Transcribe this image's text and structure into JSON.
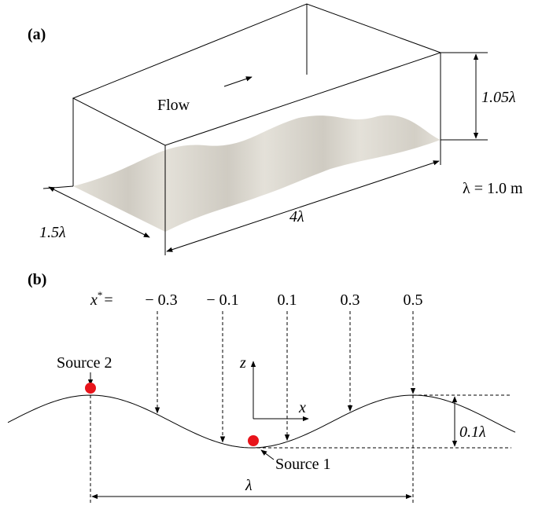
{
  "panel_a": {
    "label": "(a)",
    "flow": "Flow",
    "height": "1.05λ",
    "width": "1.5λ",
    "length": "4λ",
    "wavelength_def": "λ = 1.0 m"
  },
  "panel_b": {
    "label": "(b)",
    "x_star": {
      "symbol": "x",
      "superscript": "*",
      "equals": "="
    },
    "positions": [
      "− 0.3",
      "− 0.1",
      "0.1",
      "0.3",
      "0.5"
    ],
    "source_2": "Source 2",
    "source_1": "Source 1",
    "axis_z": "z",
    "axis_x": "x",
    "amplitude": "0.1λ",
    "wavelength": "λ"
  }
}
